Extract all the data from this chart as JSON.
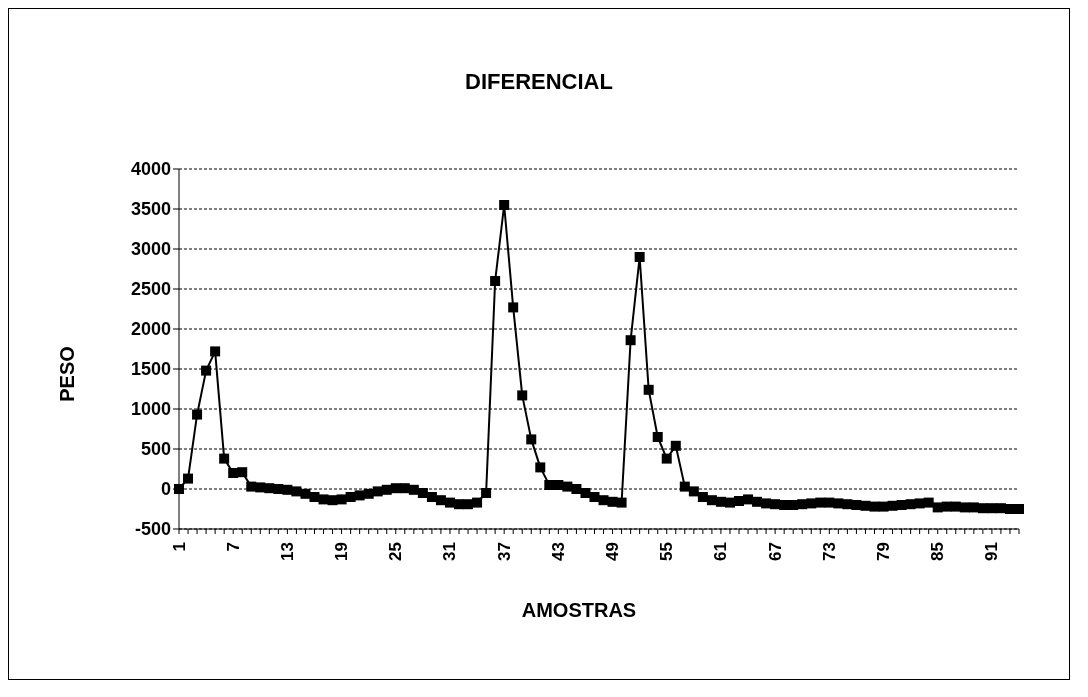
{
  "chart_data": {
    "type": "line",
    "title": "DIFERENCIAL",
    "xlabel": "AMOSTRAS",
    "ylabel": "PESO",
    "categories": [
      "1",
      null,
      null,
      null,
      null,
      null,
      "7",
      null,
      null,
      null,
      null,
      null,
      "13",
      null,
      null,
      null,
      null,
      null,
      "19",
      null,
      null,
      null,
      null,
      null,
      "25",
      null,
      null,
      null,
      null,
      null,
      "31",
      null,
      null,
      null,
      null,
      null,
      "37",
      null,
      null,
      null,
      null,
      null,
      "43",
      null,
      null,
      null,
      null,
      null,
      "49",
      null,
      null,
      null,
      null,
      null,
      "55",
      null,
      null,
      null,
      null,
      null,
      "61",
      null,
      null,
      null,
      null,
      null,
      "67",
      null,
      null,
      null,
      null,
      null,
      "73",
      null,
      null,
      null,
      null,
      null,
      "79",
      null,
      null,
      null,
      null,
      null,
      "85",
      null,
      null,
      null,
      null,
      null,
      "91",
      null,
      null,
      null
    ],
    "series": [
      {
        "color": "#000000",
        "values": [
          0,
          130,
          930,
          1480,
          1720,
          380,
          200,
          210,
          30,
          20,
          10,
          0,
          -10,
          -30,
          -60,
          -100,
          -130,
          -140,
          -130,
          -100,
          -80,
          -60,
          -30,
          -10,
          10,
          10,
          -10,
          -50,
          -100,
          -140,
          -170,
          -190,
          -190,
          -170,
          -50,
          2600,
          3550,
          2270,
          1170,
          620,
          270,
          50,
          50,
          30,
          0,
          -50,
          -100,
          -140,
          -160,
          -170,
          1860,
          2900,
          1240,
          650,
          380,
          540,
          30,
          -30,
          -100,
          -140,
          -160,
          -170,
          -150,
          -130,
          -160,
          -180,
          -190,
          -200,
          -200,
          -190,
          -180,
          -170,
          -170,
          -180,
          -190,
          -200,
          -210,
          -220,
          -220,
          -210,
          -200,
          -190,
          -180,
          -170,
          -230,
          -220,
          -220,
          -230,
          -230,
          -240,
          -240,
          -240,
          -250,
          -250
        ]
      }
    ],
    "ylim": [
      -500,
      4000
    ],
    "yticks": [
      -500,
      0,
      500,
      1000,
      1500,
      2000,
      2500,
      3000,
      3500,
      4000
    ],
    "grid": "y",
    "marker": "square",
    "line_style": "solid"
  }
}
